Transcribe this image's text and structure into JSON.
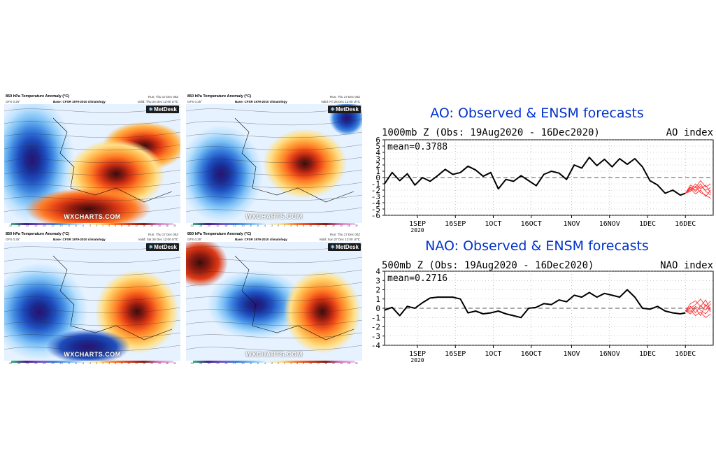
{
  "maps": [
    {
      "title": "850 hPa Temperature Anomaly (°C)",
      "model": "GFS 0.25°",
      "base": "Base: CFSR 1979-2010 climatology",
      "run": "Run: Thu 17 Dec 00Z",
      "valid": "Valid: Thu 24 Dec 12:00 UTC",
      "brand": "MetDesk",
      "watermark": "WXCHARTS.COM"
    },
    {
      "title": "850 hPa Temperature Anomaly (°C)",
      "model": "GFS 0.25°",
      "base": "Base: CFSR 1979-2010 climatology",
      "run": "Run: Thu 17 Dec 00Z",
      "valid": "Valid: Fri 25 Dec 12:00 UTC",
      "brand": "MetDesk",
      "watermark": "WXCHARTS.COM"
    },
    {
      "title": "850 hPa Temperature Anomaly (°C)",
      "model": "GFS 0.25°",
      "base": "Base: CFSR 1979-2010 climatology",
      "run": "Run: Thu 17 Dec 00Z",
      "valid": "Valid: Sat 26 Dec 12:00 UTC",
      "brand": "MetDesk",
      "watermark": "WXCHARTS.COM"
    },
    {
      "title": "850 hPa Temperature Anomaly (°C)",
      "model": "GFS 0.25°",
      "base": "Base: CFSR 1979-2010 climatology",
      "run": "Run: Thu 17 Dec 00Z",
      "valid": "Valid: Sun 27 Dec 12:00 UTC",
      "brand": "MetDesk",
      "watermark": "WXCHARTS.COM"
    }
  ],
  "colorbar_ticks": [
    "-32",
    "-28",
    "-24",
    "-20",
    "-16",
    "-12",
    "-10",
    "-8",
    "-6",
    "-4",
    "-2",
    "0",
    "2",
    "4",
    "6",
    "8",
    "10",
    "12",
    "16",
    "20",
    "24",
    "28",
    "32"
  ],
  "colors": {
    "title_blue": "#0033cc",
    "observed": "#000000",
    "ensemble": "#ff3333",
    "zero_line": "#555555"
  },
  "chart_data": [
    {
      "type": "line",
      "title": "AO: Observed & ENSM forecasts",
      "subtitle": "1000mb Z (Obs: 19Aug2020 - 16Dec2020)",
      "index_label": "AO index",
      "mean_label": "mean=0.3788",
      "ylim": [
        -6,
        6
      ],
      "yticks": [
        "6",
        "5",
        "4",
        "3",
        "2",
        "1",
        "0",
        "-1",
        "-2",
        "-3",
        "-4",
        "-5",
        "-6"
      ],
      "x_tick_labels": [
        "1SEP",
        "16SEP",
        "1OCT",
        "16OCT",
        "1NOV",
        "16NOV",
        "1DEC",
        "16DEC"
      ],
      "x_year_label": "2020",
      "grid": "dotted",
      "series": [
        {
          "role": "observed",
          "x": [
            "19Aug",
            "22Aug",
            "25Aug",
            "28Aug",
            "31Aug",
            "3Sep",
            "6Sep",
            "9Sep",
            "12Sep",
            "15Sep",
            "18Sep",
            "21Sep",
            "24Sep",
            "27Sep",
            "30Sep",
            "3Oct",
            "6Oct",
            "9Oct",
            "12Oct",
            "15Oct",
            "18Oct",
            "21Oct",
            "24Oct",
            "27Oct",
            "30Oct",
            "2Nov",
            "5Nov",
            "8Nov",
            "11Nov",
            "14Nov",
            "17Nov",
            "20Nov",
            "23Nov",
            "26Nov",
            "29Nov",
            "2Dec",
            "5Dec",
            "8Dec",
            "11Dec",
            "14Dec",
            "16Dec"
          ],
          "y": [
            -1.0,
            0.8,
            -0.5,
            0.6,
            -1.2,
            0.0,
            -0.6,
            0.3,
            1.3,
            0.5,
            0.8,
            1.8,
            1.2,
            0.2,
            0.8,
            -1.8,
            -0.3,
            -0.6,
            0.3,
            -0.5,
            -1.3,
            0.5,
            1.0,
            0.7,
            -0.3,
            2.0,
            1.5,
            3.2,
            1.9,
            2.9,
            1.7,
            3.0,
            2.1,
            3.0,
            1.7,
            -0.5,
            -1.2,
            -2.5,
            -2.0,
            -2.8,
            -2.5
          ]
        },
        {
          "role": "ensemble",
          "members": [
            [
              -2.5,
              -1.5,
              -2.0,
              -1.0,
              -2.2,
              -2.8
            ],
            [
              -2.5,
              -2.0,
              -1.0,
              -1.8,
              -1.2,
              -2.5
            ],
            [
              -2.5,
              -1.8,
              -2.6,
              -2.0,
              -3.0,
              -2.0
            ],
            [
              -2.5,
              -1.2,
              -1.6,
              -0.5,
              -1.5,
              -1.0
            ],
            [
              -2.5,
              -2.2,
              -1.4,
              -2.4,
              -2.8,
              -3.3
            ],
            [
              -2.5,
              -1.6,
              -2.2,
              -1.4,
              -2.0,
              -1.6
            ]
          ],
          "x": [
            "16Dec",
            "18Dec",
            "20Dec",
            "22Dec",
            "24Dec",
            "26Dec"
          ]
        }
      ]
    },
    {
      "type": "line",
      "title": "NAO: Observed & ENSM forecasts",
      "subtitle": "500mb Z (Obs: 19Aug2020 - 16Dec2020)",
      "index_label": "NAO index",
      "mean_label": "mean=0.2716",
      "ylim": [
        -4,
        4
      ],
      "yticks": [
        "4",
        "3",
        "2",
        "1",
        "0",
        "-1",
        "-2",
        "-3",
        "-4"
      ],
      "x_tick_labels": [
        "1SEP",
        "16SEP",
        "1OCT",
        "16OCT",
        "1NOV",
        "16NOV",
        "1DEC",
        "16DEC"
      ],
      "x_year_label": "2020",
      "grid": "dotted",
      "series": [
        {
          "role": "observed",
          "x": [
            "19Aug",
            "22Aug",
            "25Aug",
            "28Aug",
            "31Aug",
            "3Sep",
            "6Sep",
            "9Sep",
            "12Sep",
            "15Sep",
            "18Sep",
            "21Sep",
            "24Sep",
            "27Sep",
            "30Sep",
            "3Oct",
            "6Oct",
            "9Oct",
            "12Oct",
            "15Oct",
            "18Oct",
            "21Oct",
            "24Oct",
            "27Oct",
            "30Oct",
            "2Nov",
            "5Nov",
            "8Nov",
            "11Nov",
            "14Nov",
            "17Nov",
            "20Nov",
            "23Nov",
            "26Nov",
            "29Nov",
            "2Dec",
            "5Dec",
            "8Dec",
            "11Dec",
            "14Dec",
            "16Dec"
          ],
          "y": [
            -0.2,
            0.1,
            -0.8,
            0.2,
            0.0,
            0.6,
            1.1,
            1.2,
            1.2,
            1.2,
            1.0,
            -0.5,
            -0.3,
            -0.6,
            -0.5,
            -0.3,
            -0.6,
            -0.8,
            -1.0,
            0.0,
            0.1,
            0.5,
            0.4,
            0.9,
            0.7,
            1.4,
            1.2,
            1.7,
            1.2,
            1.6,
            1.4,
            1.2,
            2.0,
            1.2,
            0.0,
            -0.1,
            0.2,
            -0.3,
            -0.5,
            -0.6,
            -0.5
          ]
        },
        {
          "role": "ensemble",
          "members": [
            [
              -0.3,
              0.2,
              -0.5,
              0.3,
              -0.2,
              0.5
            ],
            [
              -0.3,
              -0.6,
              0.0,
              -0.8,
              0.4,
              -0.4
            ],
            [
              -0.3,
              0.5,
              0.8,
              0.2,
              0.9,
              -0.2
            ],
            [
              -0.3,
              -0.2,
              -0.8,
              -0.4,
              -1.0,
              -0.6
            ],
            [
              -0.3,
              0.0,
              0.4,
              1.0,
              0.2,
              0.8
            ],
            [
              -0.3,
              -0.4,
              0.2,
              -0.2,
              -0.6,
              0.1
            ]
          ],
          "x": [
            "16Dec",
            "18Dec",
            "20Dec",
            "22Dec",
            "24Dec",
            "26Dec"
          ]
        }
      ]
    }
  ]
}
